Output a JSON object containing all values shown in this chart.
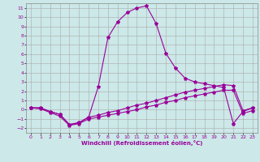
{
  "xlabel": "Windchill (Refroidissement éolien,°C)",
  "bg_color": "#cce8e8",
  "line_color": "#990099",
  "grid_color": "#aaaaaa",
  "xlim": [
    -0.5,
    23.5
  ],
  "ylim": [
    -2.5,
    11.5
  ],
  "xticks": [
    0,
    1,
    2,
    3,
    4,
    5,
    6,
    7,
    8,
    9,
    10,
    11,
    12,
    13,
    14,
    15,
    16,
    17,
    18,
    19,
    20,
    21,
    22,
    23
  ],
  "yticks": [
    -2,
    -1,
    0,
    1,
    2,
    3,
    4,
    5,
    6,
    7,
    8,
    9,
    10,
    11
  ],
  "line1_x": [
    0,
    1,
    2,
    3,
    4,
    5,
    6,
    7,
    8,
    9,
    10,
    11,
    12,
    13,
    14,
    15,
    16,
    17,
    18,
    19,
    20,
    21,
    22,
    23
  ],
  "line1_y": [
    0.2,
    0.2,
    -0.2,
    -0.5,
    -1.6,
    -1.4,
    -0.8,
    2.5,
    7.8,
    9.5,
    10.5,
    11.0,
    11.2,
    9.3,
    6.1,
    4.5,
    3.4,
    3.0,
    2.8,
    2.6,
    2.4,
    -1.5,
    -0.2,
    0.2
  ],
  "line2_x": [
    0,
    1,
    2,
    3,
    4,
    5,
    6,
    7,
    8,
    9,
    10,
    11,
    12,
    13,
    14,
    15,
    16,
    17,
    18,
    19,
    20,
    21,
    22,
    23
  ],
  "line2_y": [
    0.2,
    0.2,
    -0.2,
    -0.5,
    -1.6,
    -1.4,
    -0.8,
    -0.6,
    -0.3,
    -0.1,
    0.2,
    0.5,
    0.7,
    1.0,
    1.3,
    1.6,
    1.9,
    2.1,
    2.3,
    2.5,
    2.7,
    2.6,
    -0.1,
    0.2
  ],
  "line3_x": [
    0,
    1,
    2,
    3,
    4,
    5,
    6,
    7,
    8,
    9,
    10,
    11,
    12,
    13,
    14,
    15,
    16,
    17,
    18,
    19,
    20,
    21,
    22,
    23
  ],
  "line3_y": [
    0.2,
    0.1,
    -0.3,
    -0.7,
    -1.7,
    -1.5,
    -1.0,
    -0.8,
    -0.6,
    -0.4,
    -0.2,
    0.0,
    0.3,
    0.5,
    0.8,
    1.0,
    1.3,
    1.5,
    1.7,
    1.9,
    2.1,
    2.1,
    -0.4,
    -0.1
  ]
}
